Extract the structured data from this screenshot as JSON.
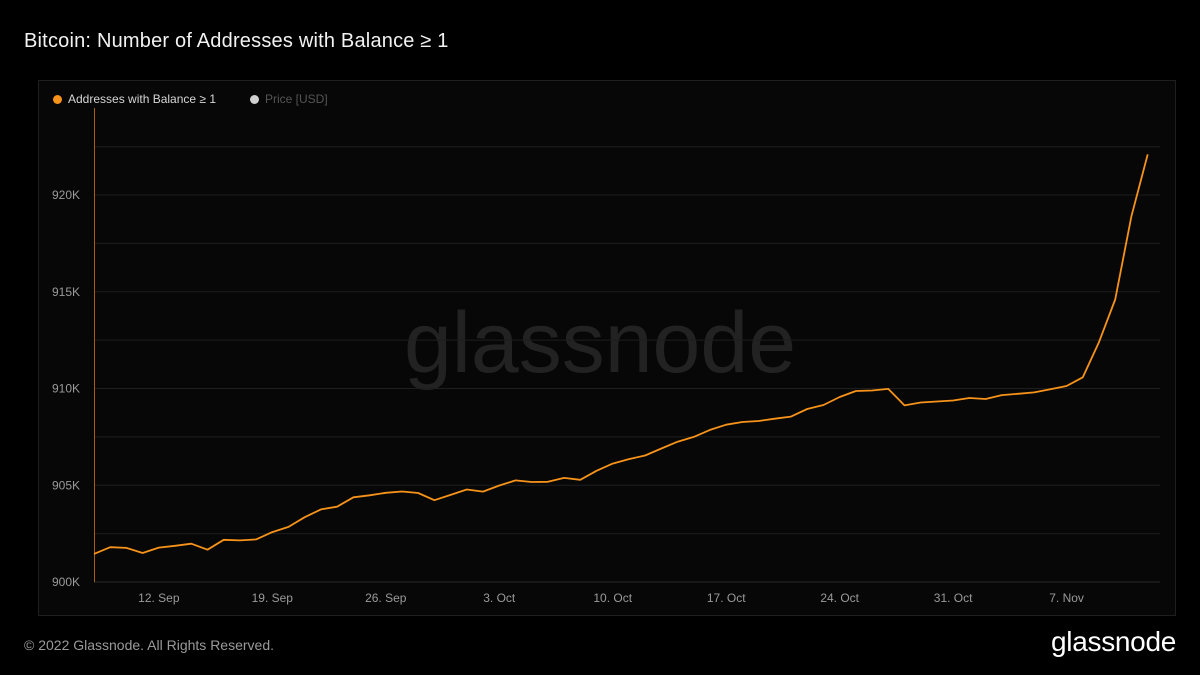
{
  "title": "Bitcoin: Number of Addresses with Balance ≥ 1",
  "legend": [
    {
      "label": "Addresses with Balance ≥ 1",
      "color": "#f7931a",
      "active": true
    },
    {
      "label": "Price [USD]",
      "color": "#d0d0d0",
      "active": false
    }
  ],
  "watermark": "glassnode",
  "footer": {
    "copyright": "© 2022 Glassnode. All Rights Reserved.",
    "logo": "glassnode"
  },
  "colors": {
    "line": "#f7931a",
    "grid": "#1e1e1e",
    "background": "#000000"
  },
  "chart_data": {
    "type": "line",
    "title": "Bitcoin: Number of Addresses with Balance ≥ 1",
    "xlabel": "",
    "ylabel": "",
    "x_range": [
      "2022-09-08",
      "2022-11-10"
    ],
    "ylim": [
      900000,
      924500
    ],
    "x_ticks": [
      {
        "date": "2022-09-12",
        "label": "12. Sep"
      },
      {
        "date": "2022-09-19",
        "label": "19. Sep"
      },
      {
        "date": "2022-09-26",
        "label": "26. Sep"
      },
      {
        "date": "2022-10-03",
        "label": "3. Oct"
      },
      {
        "date": "2022-10-10",
        "label": "10. Oct"
      },
      {
        "date": "2022-10-17",
        "label": "17. Oct"
      },
      {
        "date": "2022-10-24",
        "label": "24. Oct"
      },
      {
        "date": "2022-10-31",
        "label": "31. Oct"
      },
      {
        "date": "2022-11-07",
        "label": "7. Nov"
      }
    ],
    "y_ticks": [
      {
        "value": 900000,
        "label": "900K"
      },
      {
        "value": 905000,
        "label": "905K"
      },
      {
        "value": 910000,
        "label": "910K"
      },
      {
        "value": 915000,
        "label": "915K"
      },
      {
        "value": 920000,
        "label": "920K"
      }
    ],
    "grid": true,
    "legend_position": "top-left",
    "series": [
      {
        "name": "Addresses with Balance ≥ 1",
        "color": "#f7931a",
        "points": [
          [
            "2022-09-08",
            901450
          ],
          [
            "2022-09-09",
            901800
          ],
          [
            "2022-09-10",
            901760
          ],
          [
            "2022-09-11",
            901500
          ],
          [
            "2022-09-12",
            901780
          ],
          [
            "2022-09-13",
            901870
          ],
          [
            "2022-09-14",
            901980
          ],
          [
            "2022-09-15",
            901670
          ],
          [
            "2022-09-16",
            902180
          ],
          [
            "2022-09-17",
            902150
          ],
          [
            "2022-09-18",
            902200
          ],
          [
            "2022-09-19",
            902580
          ],
          [
            "2022-09-20",
            902850
          ],
          [
            "2022-09-21",
            903350
          ],
          [
            "2022-09-22",
            903750
          ],
          [
            "2022-09-23",
            903890
          ],
          [
            "2022-09-24",
            904380
          ],
          [
            "2022-09-25",
            904480
          ],
          [
            "2022-09-26",
            904610
          ],
          [
            "2022-09-27",
            904680
          ],
          [
            "2022-09-28",
            904600
          ],
          [
            "2022-09-29",
            904230
          ],
          [
            "2022-09-30",
            904500
          ],
          [
            "2022-10-01",
            904780
          ],
          [
            "2022-10-02",
            904670
          ],
          [
            "2022-10-03",
            904990
          ],
          [
            "2022-10-04",
            905250
          ],
          [
            "2022-10-05",
            905170
          ],
          [
            "2022-10-06",
            905180
          ],
          [
            "2022-10-07",
            905380
          ],
          [
            "2022-10-08",
            905280
          ],
          [
            "2022-10-09",
            905750
          ],
          [
            "2022-10-10",
            906120
          ],
          [
            "2022-10-11",
            906350
          ],
          [
            "2022-10-12",
            906540
          ],
          [
            "2022-10-13",
            906900
          ],
          [
            "2022-10-14",
            907250
          ],
          [
            "2022-10-15",
            907500
          ],
          [
            "2022-10-16",
            907860
          ],
          [
            "2022-10-17",
            908130
          ],
          [
            "2022-10-18",
            908270
          ],
          [
            "2022-10-19",
            908320
          ],
          [
            "2022-10-20",
            908440
          ],
          [
            "2022-10-21",
            908550
          ],
          [
            "2022-10-22",
            908940
          ],
          [
            "2022-10-23",
            909150
          ],
          [
            "2022-10-24",
            909560
          ],
          [
            "2022-10-25",
            909870
          ],
          [
            "2022-10-26",
            909900
          ],
          [
            "2022-10-27",
            909980
          ],
          [
            "2022-10-28",
            909130
          ],
          [
            "2022-10-29",
            909280
          ],
          [
            "2022-10-30",
            909330
          ],
          [
            "2022-10-31",
            909380
          ],
          [
            "2022-11-01",
            909510
          ],
          [
            "2022-11-02",
            909460
          ],
          [
            "2022-11-03",
            909660
          ],
          [
            "2022-11-04",
            909730
          ],
          [
            "2022-11-05",
            909800
          ],
          [
            "2022-11-06",
            909960
          ],
          [
            "2022-11-07",
            910130
          ],
          [
            "2022-11-08",
            910580
          ],
          [
            "2022-11-09",
            912400
          ],
          [
            "2022-11-10",
            914600
          ],
          [
            "2022-11-11",
            918900
          ],
          [
            "2022-11-12",
            922100
          ]
        ]
      }
    ]
  }
}
